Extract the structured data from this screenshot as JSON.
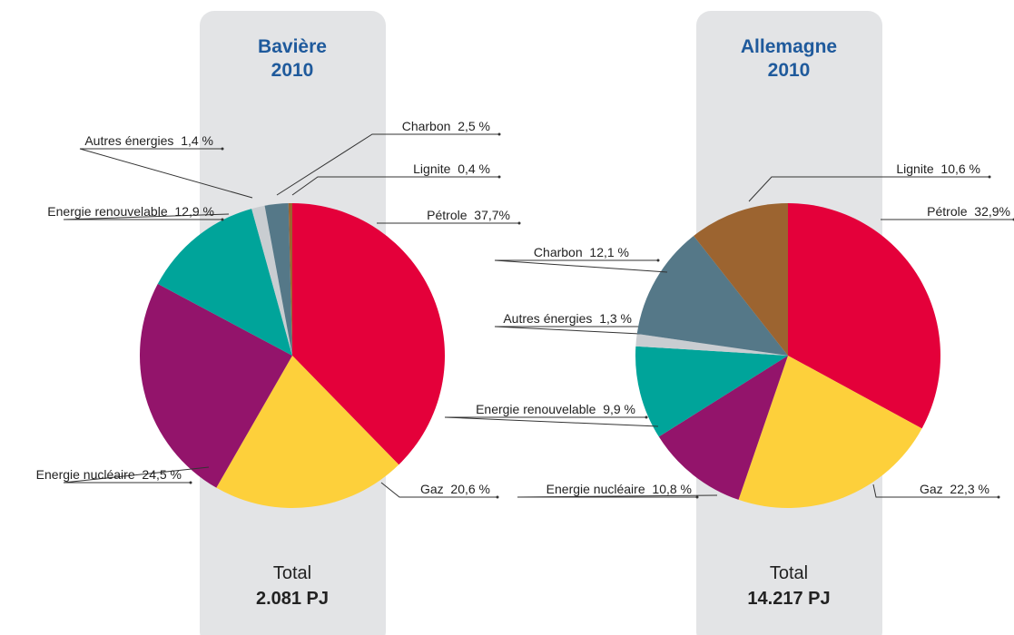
{
  "chart_data": [
    {
      "type": "pie",
      "title": "Bavière",
      "subtitle": "2010",
      "total_label": "Total",
      "total": "2.081 PJ",
      "categories": [
        "Pétrole",
        "Gaz",
        "Energie nucléaire",
        "Energie renouvelable",
        "Autres énergies",
        "Charbon",
        "Lignite"
      ],
      "values": [
        37.7,
        20.6,
        24.5,
        12.9,
        1.4,
        2.5,
        0.4
      ],
      "value_labels": [
        "37,7%",
        "20,6 %",
        "24,5 %",
        "12,9 %",
        "1,4 %",
        "2,5 %",
        "0,4 %"
      ],
      "colors": [
        "#e4003a",
        "#fdd03b",
        "#93146b",
        "#00a49a",
        "#c9cdd1",
        "#557888",
        "#9c6430"
      ]
    },
    {
      "type": "pie",
      "title": "Allemagne",
      "subtitle": "2010",
      "total_label": "Total",
      "total": "14.217 PJ",
      "categories": [
        "Pétrole",
        "Gaz",
        "Energie nucléaire",
        "Energie renouvelable",
        "Autres énergies",
        "Charbon",
        "Lignite"
      ],
      "values": [
        32.9,
        22.3,
        10.8,
        9.9,
        1.3,
        12.1,
        10.6
      ],
      "value_labels": [
        "32,9%",
        "22,3 %",
        "10,8 %",
        "9,9 %",
        "1,3 %",
        "12,1 %",
        "10,6 %"
      ],
      "colors": [
        "#e4003a",
        "#fdd03b",
        "#93146b",
        "#00a49a",
        "#c9cdd1",
        "#557888",
        "#9c6430"
      ]
    }
  ]
}
